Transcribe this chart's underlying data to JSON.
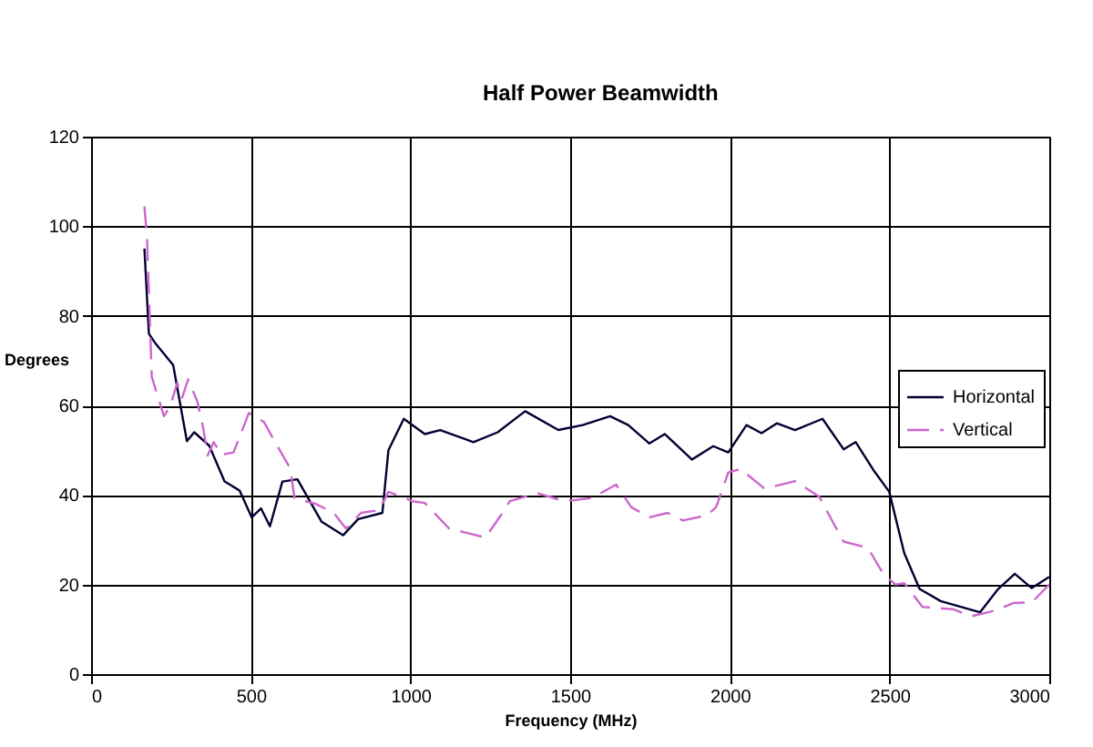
{
  "chart_data": {
    "type": "line",
    "title": "Half Power Beamwidth",
    "xlabel": "Frequency (MHz)",
    "ylabel": "Degrees",
    "xlim": [
      0,
      3000
    ],
    "xticks": [
      0,
      500,
      1000,
      1500,
      2000,
      2500,
      3000
    ],
    "ylim": [
      0,
      120
    ],
    "yticks": [
      0,
      20,
      40,
      60,
      80,
      100,
      120
    ],
    "grid": true,
    "legend": "right",
    "marker": "none",
    "series": [
      {
        "name": "Horizontal",
        "color": "#000033",
        "line_style": "solid",
        "x": [
          167,
          181,
          200,
          257,
          300,
          323,
          370,
          418,
          465,
          503,
          532,
          560,
          599,
          646,
          722,
          789,
          836,
          912,
          931,
          979,
          1045,
          1093,
          1197,
          1273,
          1359,
          1463,
          1539,
          1625,
          1682,
          1748,
          1796,
          1881,
          1948,
          1995,
          2052,
          2099,
          2147,
          2204,
          2290,
          2356,
          2394,
          2451,
          2499,
          2546,
          2594,
          2660,
          2783,
          2840,
          2892,
          2945,
          3000
        ],
        "values": [
          95,
          76,
          74,
          69,
          52,
          54,
          51,
          43,
          41,
          35,
          37,
          33,
          43,
          43.5,
          34,
          31,
          34.6,
          36,
          50,
          57,
          53.6,
          54.5,
          51.8,
          54,
          58.7,
          54.5,
          55.6,
          57.6,
          55.6,
          51.5,
          53.6,
          47.9,
          50.9,
          49.5,
          55.6,
          53.8,
          56,
          54.5,
          57,
          50.2,
          51.8,
          45.4,
          40.7,
          27,
          19,
          16.3,
          13.8,
          19,
          22.4,
          19.2,
          21.7
        ]
      },
      {
        "name": "Vertical",
        "color": "#cc66cc",
        "line_style": "dashed",
        "x": [
          167,
          175,
          190,
          228,
          247,
          270,
          285,
          304,
          332,
          351,
          365,
          384,
          408,
          446,
          494,
          541,
          589,
          623,
          637,
          703,
          760,
          798,
          845,
          902,
          931,
          1007,
          1045,
          1121,
          1235,
          1283,
          1311,
          1397,
          1482,
          1568,
          1644,
          1691,
          1748,
          1805,
          1853,
          1929,
          1957,
          1995,
          2033,
          2109,
          2204,
          2280,
          2328,
          2356,
          2432,
          2480,
          2518,
          2546,
          2603,
          2698,
          2755,
          2831,
          2888,
          2945,
          3000
        ],
        "values": [
          104.4,
          97.6,
          66.4,
          57.6,
          59.7,
          65,
          61.7,
          65.8,
          61,
          55,
          48.8,
          51.8,
          49,
          49.5,
          58.3,
          56.3,
          50.2,
          46,
          39.3,
          38,
          36,
          32.5,
          36,
          36.6,
          40.7,
          38.6,
          38.2,
          32.5,
          30.5,
          35.5,
          38.6,
          40.4,
          38.6,
          39.3,
          42.3,
          37.3,
          35,
          36,
          34.3,
          35.5,
          37.3,
          45,
          45.8,
          41.4,
          43.1,
          39.6,
          33.2,
          29.6,
          28.2,
          22.4,
          20,
          20.3,
          15,
          14.5,
          12.9,
          14.2,
          15.9,
          16,
          20
        ]
      }
    ]
  }
}
